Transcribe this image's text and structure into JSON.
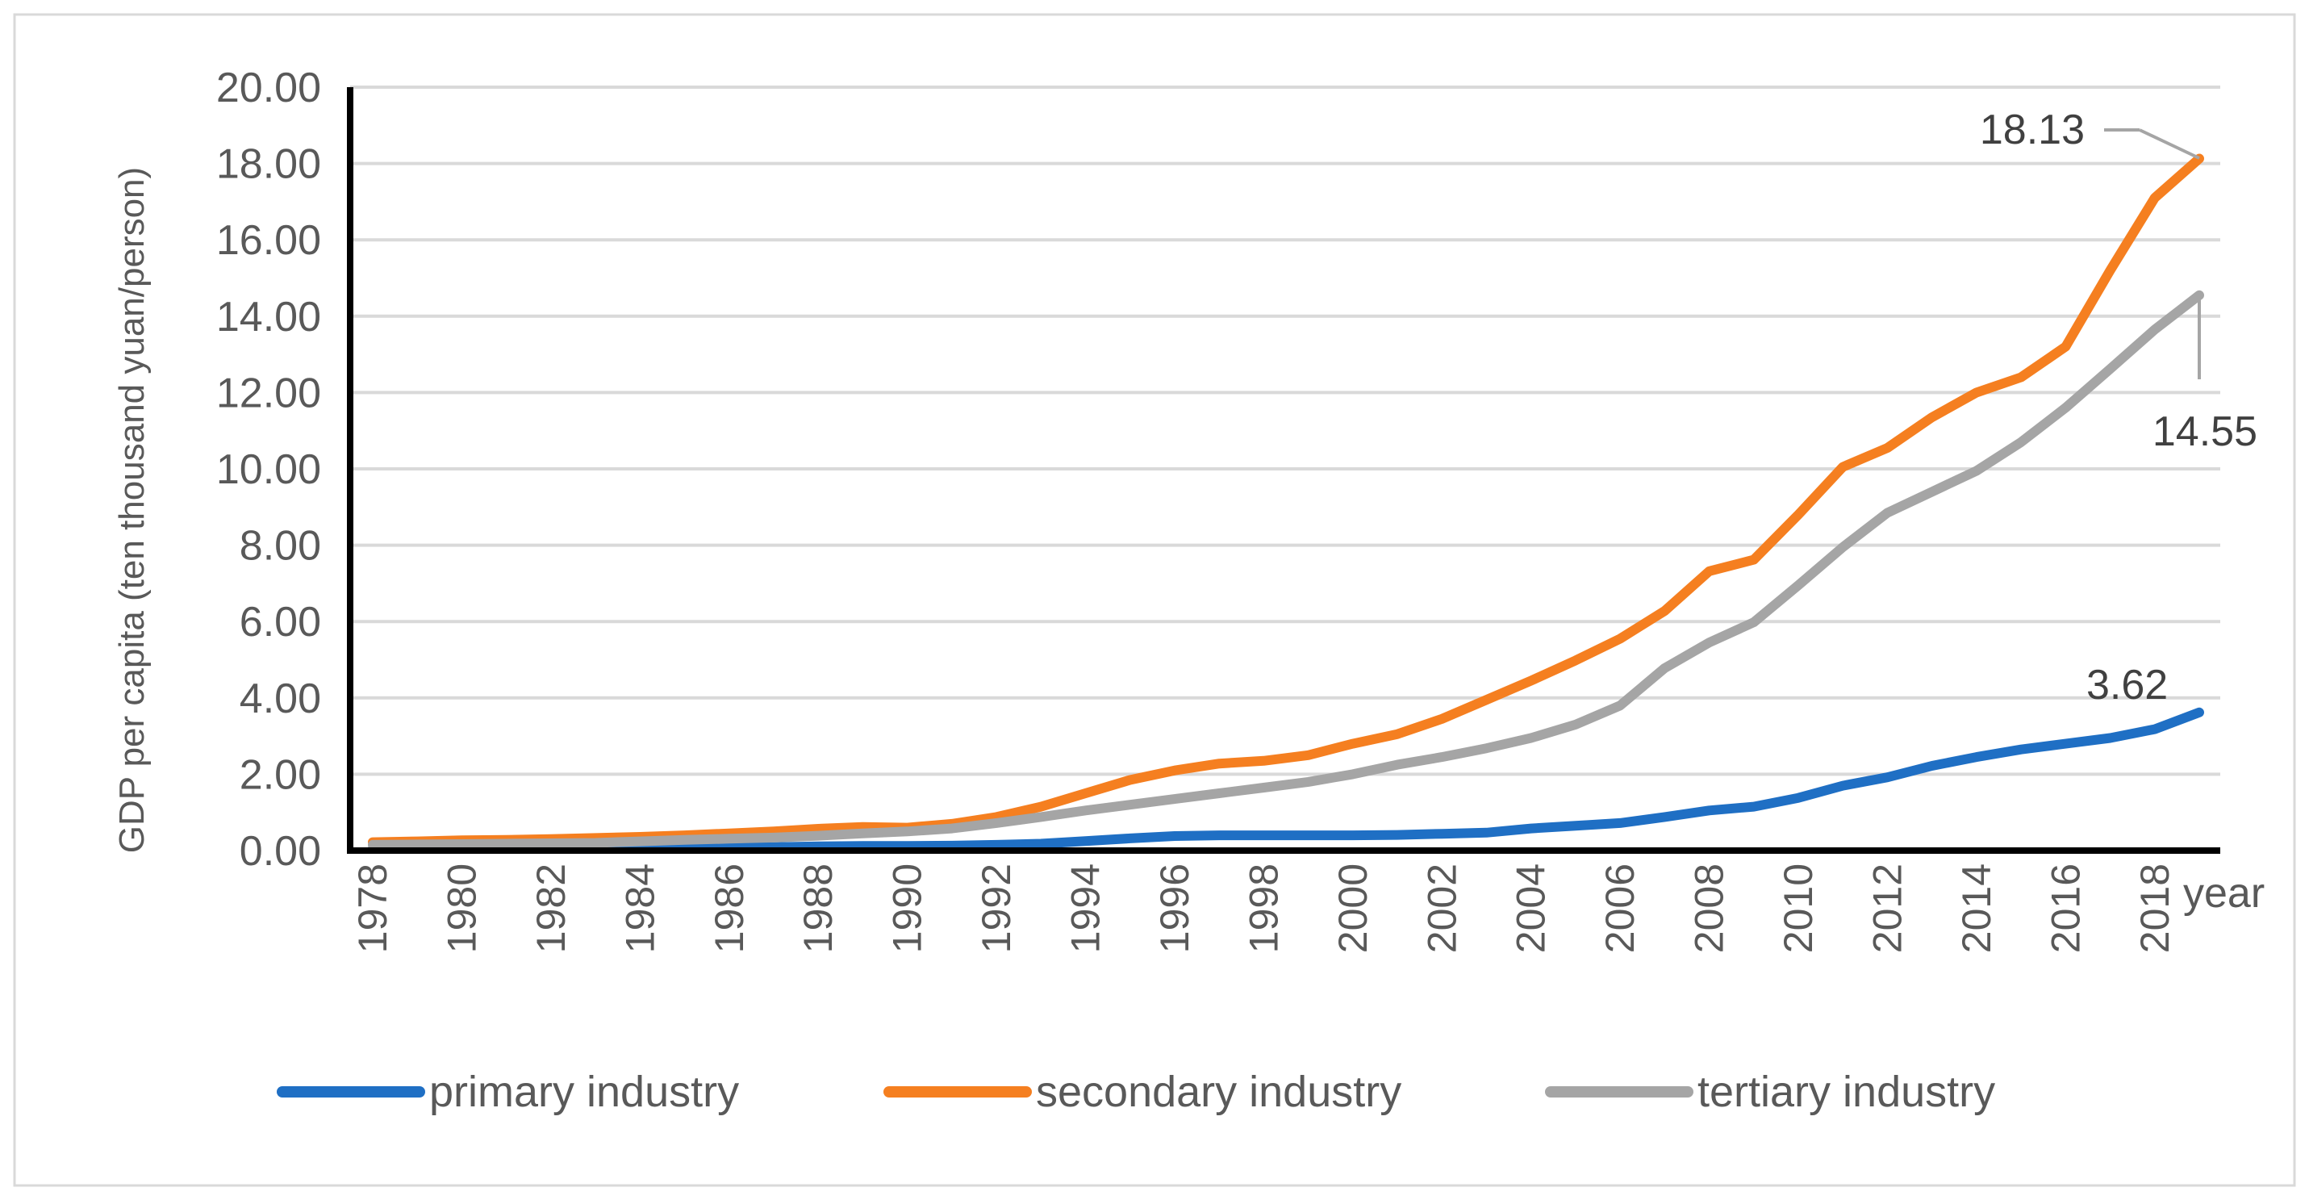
{
  "chart_data": {
    "type": "line",
    "title": "",
    "xlabel": "year",
    "ylabel": "GDP per capita (ten thousand yuan/person)",
    "ylim": [
      0,
      20
    ],
    "ytick_labels": [
      "0.00",
      "2.00",
      "4.00",
      "6.00",
      "8.00",
      "10.00",
      "12.00",
      "14.00",
      "16.00",
      "18.00",
      "20.00"
    ],
    "x": [
      1978,
      1979,
      1980,
      1981,
      1982,
      1983,
      1984,
      1985,
      1986,
      1987,
      1988,
      1989,
      1990,
      1991,
      1992,
      1993,
      1994,
      1995,
      1996,
      1997,
      1998,
      1999,
      2000,
      2001,
      2002,
      2003,
      2004,
      2005,
      2006,
      2007,
      2008,
      2009,
      2010,
      2011,
      2012,
      2013,
      2014,
      2015,
      2016,
      2017,
      2018,
      2019
    ],
    "xtick_labels": [
      "1978",
      "1980",
      "1982",
      "1984",
      "1986",
      "1988",
      "1990",
      "1992",
      "1994",
      "1996",
      "1998",
      "2000",
      "2002",
      "2004",
      "2006",
      "2008",
      "2010",
      "2012",
      "2014",
      "2016",
      "2018"
    ],
    "grid": true,
    "legend_position": "bottom",
    "series": [
      {
        "name": "primary industry",
        "color": "#1f6fc4",
        "values": [
          0.05,
          0.05,
          0.05,
          0.05,
          0.05,
          0.05,
          0.06,
          0.07,
          0.08,
          0.09,
          0.11,
          0.12,
          0.12,
          0.13,
          0.15,
          0.18,
          0.25,
          0.32,
          0.38,
          0.4,
          0.4,
          0.4,
          0.4,
          0.41,
          0.44,
          0.47,
          0.58,
          0.65,
          0.72,
          0.88,
          1.05,
          1.15,
          1.38,
          1.7,
          1.92,
          2.22,
          2.45,
          2.65,
          2.8,
          2.95,
          3.18,
          3.62
        ],
        "end_label": "3.62"
      },
      {
        "name": "secondary industry",
        "color": "#f57f20",
        "values": [
          0.22,
          0.24,
          0.27,
          0.28,
          0.3,
          0.33,
          0.36,
          0.4,
          0.45,
          0.5,
          0.57,
          0.62,
          0.6,
          0.7,
          0.88,
          1.15,
          1.5,
          1.85,
          2.1,
          2.28,
          2.35,
          2.5,
          2.8,
          3.05,
          3.45,
          3.95,
          4.45,
          4.98,
          5.55,
          6.28,
          7.32,
          7.62,
          8.8,
          10.05,
          10.55,
          11.35,
          12.0,
          12.4,
          13.2,
          15.2,
          17.1,
          18.13
        ],
        "end_label": "18.13"
      },
      {
        "name": "tertiary industry",
        "color": "#a5a5a5",
        "values": [
          0.15,
          0.16,
          0.17,
          0.18,
          0.19,
          0.2,
          0.24,
          0.28,
          0.31,
          0.34,
          0.39,
          0.45,
          0.5,
          0.58,
          0.72,
          0.88,
          1.05,
          1.2,
          1.35,
          1.5,
          1.65,
          1.8,
          2.0,
          2.25,
          2.45,
          2.68,
          2.95,
          3.3,
          3.8,
          4.78,
          5.45,
          5.98,
          6.95,
          7.95,
          8.85,
          9.4,
          9.95,
          10.7,
          11.6,
          12.62,
          13.65,
          14.55
        ],
        "end_label": "14.55"
      }
    ]
  }
}
